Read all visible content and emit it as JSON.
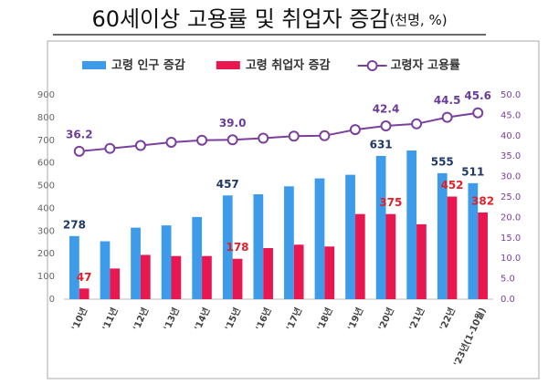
{
  "chart_data": {
    "type": "bar-line",
    "title": "60세이상 고용률 및 취업자 증감",
    "title_unit": "(천명, %)",
    "categories": [
      "'10년",
      "'11년",
      "'12년",
      "'13년",
      "'14년",
      "'15년",
      "'16년",
      "'17년",
      "'18년",
      "'19년",
      "'20년",
      "'21년",
      "'22년",
      "'23년(1-10월)"
    ],
    "series": [
      {
        "name": "고령 인구 증감",
        "type": "bar",
        "color": "#3d9be9",
        "label_color": "#1f3864",
        "values": [
          278,
          255,
          315,
          325,
          362,
          457,
          462,
          497,
          532,
          548,
          631,
          655,
          555,
          511
        ],
        "value_labels": [
          "278",
          null,
          null,
          null,
          null,
          "457",
          null,
          null,
          null,
          null,
          "631",
          null,
          "555",
          "511"
        ]
      },
      {
        "name": "고령 취업자 증감",
        "type": "bar",
        "color": "#e8174f",
        "label_color": "#e0202a",
        "values": [
          47,
          135,
          195,
          190,
          190,
          178,
          225,
          240,
          232,
          375,
          375,
          330,
          452,
          382
        ],
        "value_labels": [
          "47",
          null,
          null,
          null,
          null,
          "178",
          null,
          null,
          null,
          null,
          "375",
          null,
          "452",
          "382"
        ]
      },
      {
        "name": "고령자 고용률",
        "type": "line",
        "axis": "y2",
        "color": "#7b3f9c",
        "label_color": "#6a3d9a",
        "values": [
          36.2,
          36.9,
          37.6,
          38.4,
          38.9,
          39.0,
          39.4,
          39.9,
          40.0,
          41.5,
          42.4,
          42.9,
          44.5,
          45.6
        ],
        "value_labels": [
          "36.2",
          null,
          null,
          null,
          null,
          "39.0",
          null,
          null,
          null,
          null,
          "42.4",
          null,
          "44.5",
          "45.6"
        ]
      }
    ],
    "ylim": [
      0,
      900
    ],
    "yticks": [
      0,
      100,
      200,
      300,
      400,
      500,
      600,
      700,
      800,
      900
    ],
    "y2lim": [
      0,
      50
    ],
    "y2ticks": [
      {
        "value": 0,
        "label": "0.0"
      },
      {
        "value": 5,
        "label": "5.0"
      },
      {
        "value": 10,
        "label": "10.0"
      },
      {
        "value": 15,
        "label": "15.0"
      },
      {
        "value": 20,
        "label": "20.0"
      },
      {
        "value": 25,
        "label": "25.0"
      },
      {
        "value": 30,
        "label": "30.0"
      },
      {
        "value": 35,
        "label": "35.0"
      },
      {
        "value": 40,
        "label": "40.0"
      },
      {
        "value": 45,
        "label": "45.0"
      },
      {
        "value": 50,
        "label": "50.0"
      }
    ]
  }
}
